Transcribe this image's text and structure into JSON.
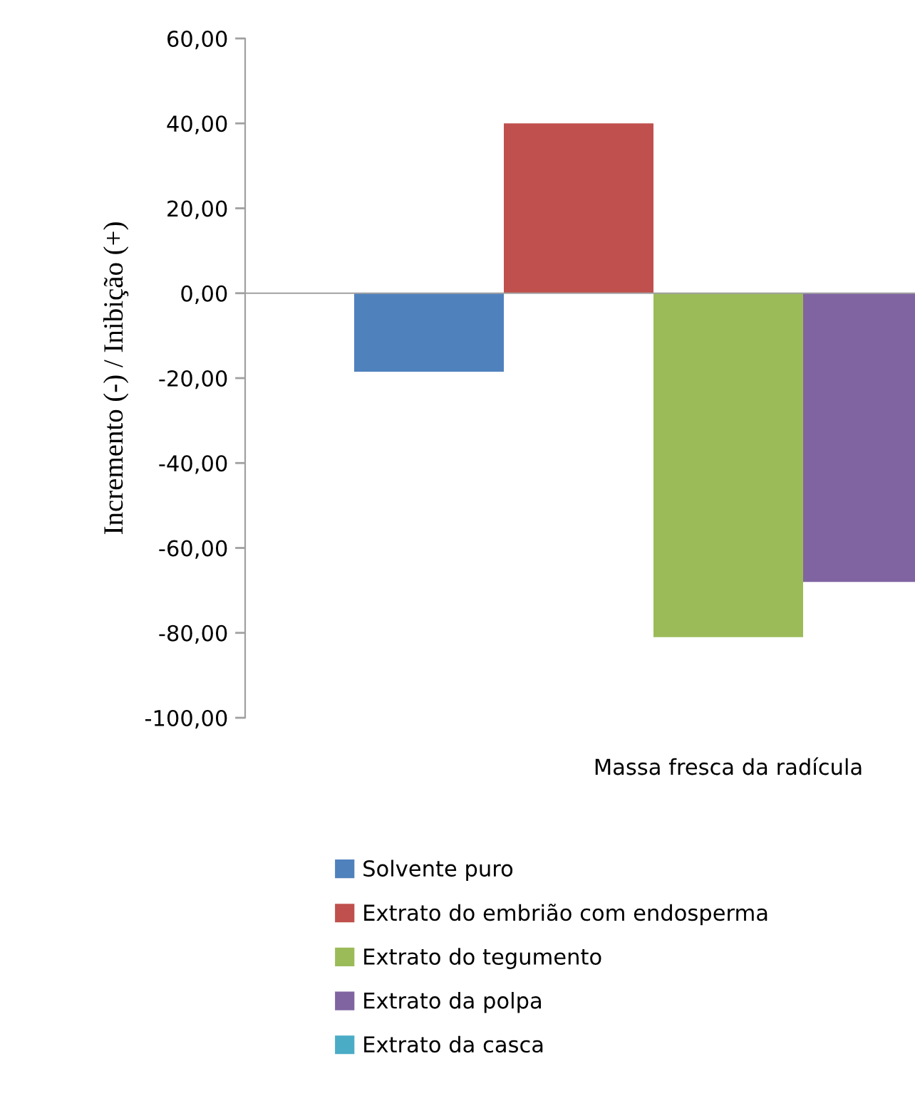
{
  "chart_data": {
    "type": "bar",
    "ylabel": "Incremento (-) / Inibição (+)",
    "categories": [
      "Massa fresca da radícula"
    ],
    "series": [
      {
        "name": "Solvente puro",
        "color": "#4f81bd",
        "values": [
          -18.5
        ]
      },
      {
        "name": "Extrato do embrião com endosperma",
        "color": "#c0504d",
        "values": [
          40
        ]
      },
      {
        "name": "Extrato do tegumento",
        "color": "#9bbb59",
        "values": [
          -81
        ]
      },
      {
        "name": "Extrato da polpa",
        "color": "#8064a2",
        "values": [
          -68
        ]
      },
      {
        "name": "Extrato da casca",
        "color": "#4bacc6",
        "values": [
          null
        ]
      }
    ],
    "ylim": [
      -100,
      60
    ],
    "yticks": [
      {
        "value": -100,
        "label": "-100,00"
      },
      {
        "value": -80,
        "label": "-80,00"
      },
      {
        "value": -60,
        "label": "-60,00"
      },
      {
        "value": -40,
        "label": "-40,00"
      },
      {
        "value": -20,
        "label": "-20,00"
      },
      {
        "value": 0,
        "label": "0,00"
      },
      {
        "value": 20,
        "label": "20,00"
      },
      {
        "value": 40,
        "label": "40,00"
      },
      {
        "value": 60,
        "label": "60,00"
      }
    ],
    "legend": "bottom"
  }
}
